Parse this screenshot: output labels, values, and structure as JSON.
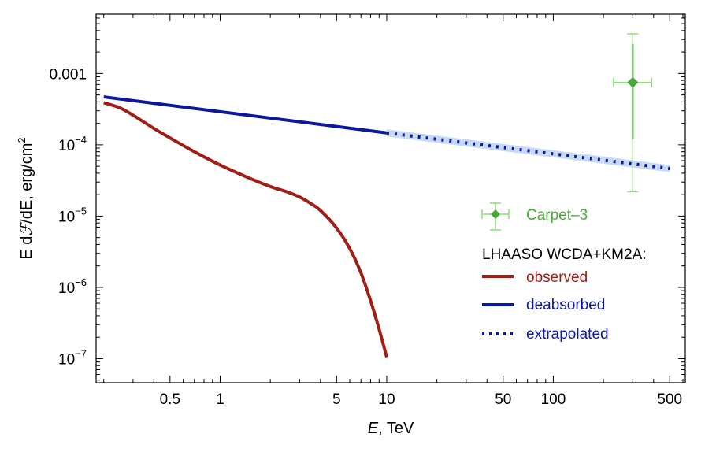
{
  "chart_data": {
    "type": "line",
    "title": "",
    "xlabel": "E, TeV",
    "xlabel_var": "E",
    "xlabel_rest": ", TeV",
    "ylabel": "E dℱ/dE, erg/cm²",
    "ylabel_main": "E d",
    "ylabel_script": "ℱ",
    "ylabel_rest": "/dE, erg/cm",
    "ylabel_sup": "2",
    "xscale": "log",
    "yscale": "log",
    "xlim": [
      0.18,
      620
    ],
    "ylim": [
      4.6e-08,
      0.0068
    ],
    "x_tick_labels": [
      {
        "value": 0.5,
        "label": "0.5"
      },
      {
        "value": 1,
        "label": "1"
      },
      {
        "value": 5,
        "label": "5"
      },
      {
        "value": 10,
        "label": "10"
      },
      {
        "value": 50,
        "label": "50"
      },
      {
        "value": 100,
        "label": "100"
      },
      {
        "value": 500,
        "label": "500"
      }
    ],
    "y_tick_labels": [
      {
        "value": 1e-07,
        "base": "10",
        "exp": "−7"
      },
      {
        "value": 1e-06,
        "base": "10",
        "exp": "−6"
      },
      {
        "value": 1e-05,
        "base": "10",
        "exp": "−5"
      },
      {
        "value": 0.0001,
        "base": "10",
        "exp": "−4"
      },
      {
        "value": 0.001,
        "base": "0.001",
        "exp": ""
      }
    ],
    "series": [
      {
        "name": "observed",
        "color": "#a01e16",
        "style": "solid",
        "points": [
          [
            0.2,
            0.00039
          ],
          [
            0.25,
            0.00033
          ],
          [
            0.3,
            0.00026
          ],
          [
            0.4,
            0.00017
          ],
          [
            0.5,
            0.000125
          ],
          [
            0.7,
            8e-05
          ],
          [
            1.0,
            5.2e-05
          ],
          [
            1.5,
            3.4e-05
          ],
          [
            2.0,
            2.6e-05
          ],
          [
            2.5,
            2.2e-05
          ],
          [
            3.0,
            1.85e-05
          ],
          [
            3.5,
            1.5e-05
          ],
          [
            4.0,
            1.2e-05
          ],
          [
            5.0,
            6.8e-06
          ],
          [
            6.0,
            3.5e-06
          ],
          [
            7.0,
            1.6e-06
          ],
          [
            8.0,
            6.5e-07
          ],
          [
            9.0,
            2.6e-07
          ],
          [
            10.0,
            1.05e-07
          ]
        ]
      },
      {
        "name": "deabsorbed",
        "color": "#0a18a0",
        "style": "solid",
        "points": [
          [
            0.2,
            0.00047
          ],
          [
            10.0,
            0.000147
          ]
        ]
      },
      {
        "name": "extrapolated",
        "color": "#0a18a0",
        "style": "dotted",
        "band_color": "#c7d9f5",
        "points": [
          [
            10.0,
            0.000147
          ],
          [
            500.0,
            4.65e-05
          ]
        ]
      },
      {
        "name": "Carpet–3",
        "color": "#4aa83a",
        "style": "point",
        "points": [
          [
            300,
            0.00075
          ]
        ],
        "x_err": [
          230,
          390
        ],
        "y_err_stat": [
          0.00012,
          0.0026
        ],
        "y_err_total": [
          2.2e-05,
          0.0036
        ]
      }
    ],
    "legend": {
      "placement": "lower-right",
      "heading": "LHAASO WCDA+KM2A:",
      "entries": {
        "carpet": "Carpet–3",
        "observed": "observed",
        "deabsorbed": "deabsorbed",
        "extrapolated": "extrapolated"
      }
    }
  }
}
